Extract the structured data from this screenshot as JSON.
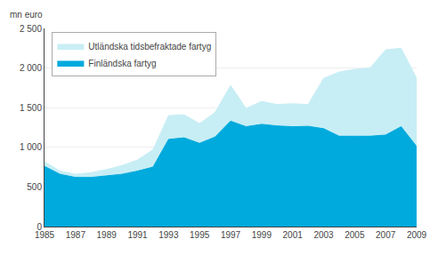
{
  "chart_data": {
    "type": "area",
    "ylabel": "mn euro",
    "x": [
      1985,
      1986,
      1987,
      1988,
      1989,
      1990,
      1991,
      1992,
      1993,
      1994,
      1995,
      1996,
      1997,
      1998,
      1999,
      2000,
      2001,
      2002,
      2003,
      2004,
      2005,
      2006,
      2007,
      2008,
      2009
    ],
    "series": [
      {
        "name": "Utländska tidsbefraktade fartyg",
        "color": "#c8eef5",
        "values": [
          820,
          700,
          660,
          680,
          720,
          770,
          840,
          970,
          1400,
          1410,
          1300,
          1440,
          1780,
          1490,
          1580,
          1540,
          1550,
          1540,
          1870,
          1950,
          1985,
          2000,
          2230,
          2250,
          1870
        ]
      },
      {
        "name": "Finländska fartyg",
        "color": "#00aadd",
        "values": [
          760,
          660,
          620,
          620,
          640,
          660,
          700,
          750,
          1100,
          1120,
          1050,
          1130,
          1330,
          1260,
          1290,
          1270,
          1260,
          1265,
          1235,
          1140,
          1140,
          1140,
          1155,
          1260,
          1010
        ]
      }
    ],
    "stacked": false,
    "xlim": [
      1985,
      2009
    ],
    "xticks": [
      1985,
      1987,
      1989,
      1991,
      1993,
      1995,
      1997,
      1999,
      2001,
      2003,
      2005,
      2007,
      2009
    ],
    "ylim": [
      0,
      2500
    ],
    "yticks": [
      0,
      500,
      {
        "value": 1000,
        "label": "1 000"
      },
      {
        "value": 1500,
        "label": "1 500"
      },
      {
        "value": 2000,
        "label": "2 000"
      },
      {
        "value": 2500,
        "label": "2 500"
      }
    ],
    "grid": true,
    "legend": "upper left"
  }
}
